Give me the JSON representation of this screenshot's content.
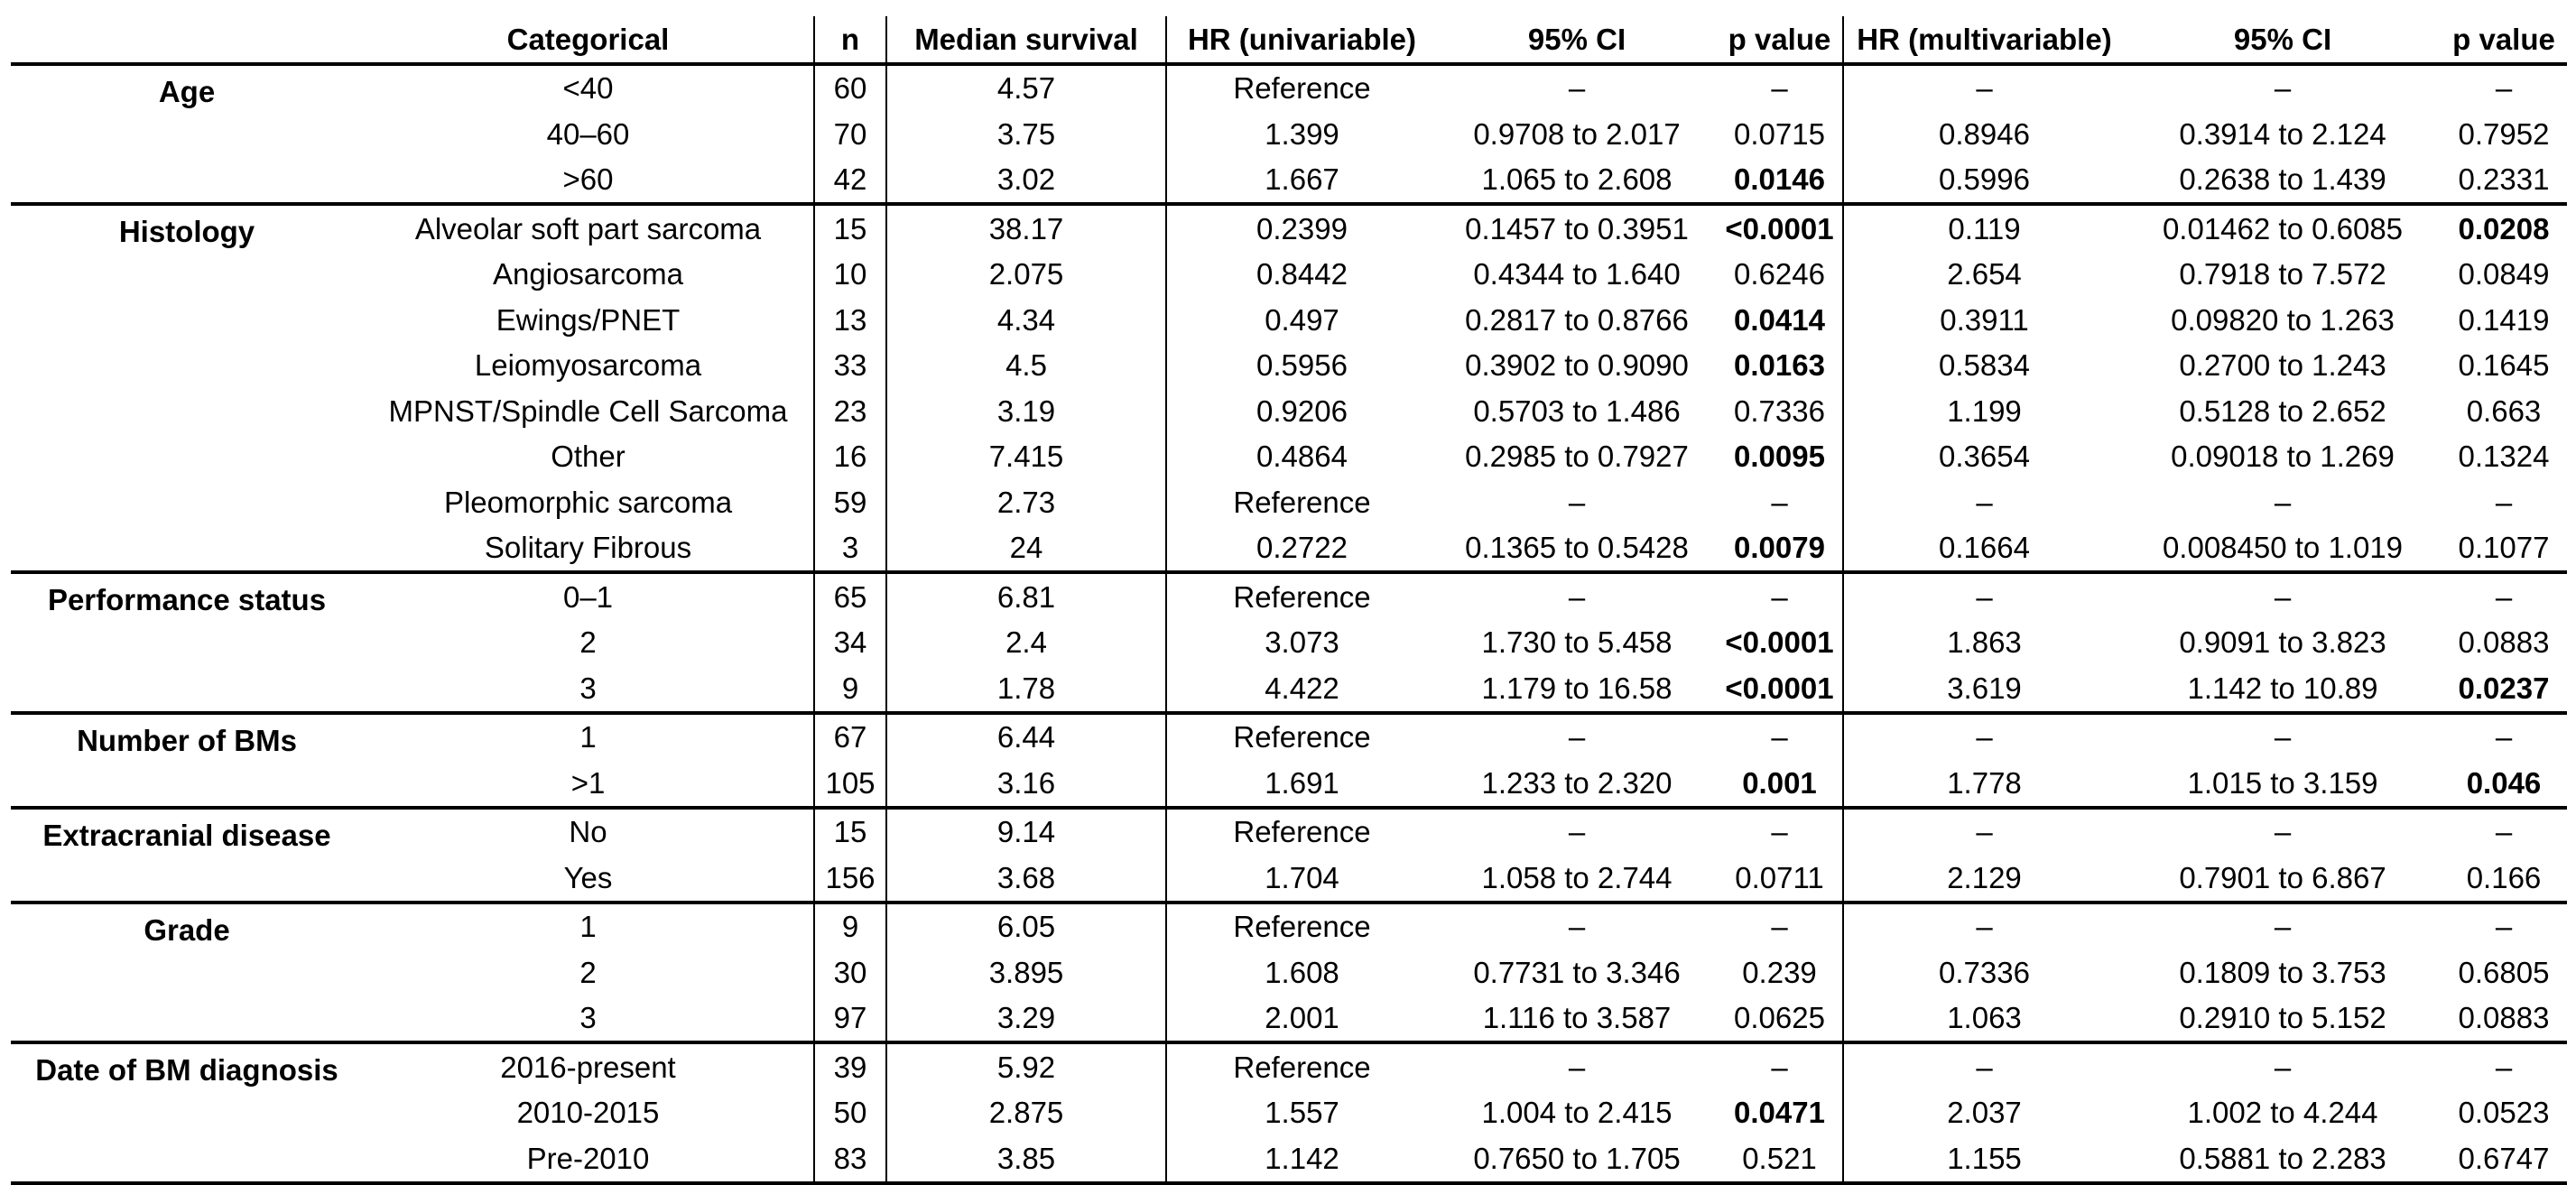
{
  "headers": [
    "",
    "Categorical",
    "n",
    "Median survival",
    "HR (univariable)",
    "95% CI",
    "p value",
    "HR (multivariable)",
    "95% CI",
    "p value"
  ],
  "groups": [
    {
      "label": "Age",
      "rows": [
        {
          "cat": "<40",
          "n": "60",
          "median": "4.57",
          "hr_uni": "Reference",
          "ci_uni": "–",
          "p_uni": "–",
          "p_uni_sig": false,
          "hr_multi": "–",
          "ci_multi": "–",
          "p_multi": "–",
          "p_multi_sig": false
        },
        {
          "cat": "40–60",
          "n": "70",
          "median": "3.75",
          "hr_uni": "1.399",
          "ci_uni": "0.9708 to 2.017",
          "p_uni": "0.0715",
          "p_uni_sig": false,
          "hr_multi": "0.8946",
          "ci_multi": "0.3914 to 2.124",
          "p_multi": "0.7952",
          "p_multi_sig": false
        },
        {
          "cat": ">60",
          "n": "42",
          "median": "3.02",
          "hr_uni": "1.667",
          "ci_uni": "1.065 to 2.608",
          "p_uni": "0.0146",
          "p_uni_sig": true,
          "hr_multi": "0.5996",
          "ci_multi": "0.2638 to 1.439",
          "p_multi": "0.2331",
          "p_multi_sig": false
        }
      ]
    },
    {
      "label": "Histology",
      "rows": [
        {
          "cat": "Alveolar soft part sarcoma",
          "n": "15",
          "median": "38.17",
          "hr_uni": "0.2399",
          "ci_uni": "0.1457 to 0.3951",
          "p_uni": "<0.0001",
          "p_uni_sig": true,
          "hr_multi": "0.119",
          "ci_multi": "0.01462 to 0.6085",
          "p_multi": "0.0208",
          "p_multi_sig": true
        },
        {
          "cat": "Angiosarcoma",
          "n": "10",
          "median": "2.075",
          "hr_uni": "0.8442",
          "ci_uni": "0.4344 to 1.640",
          "p_uni": "0.6246",
          "p_uni_sig": false,
          "hr_multi": "2.654",
          "ci_multi": "0.7918 to 7.572",
          "p_multi": "0.0849",
          "p_multi_sig": false
        },
        {
          "cat": "Ewings/PNET",
          "n": "13",
          "median": "4.34",
          "hr_uni": "0.497",
          "ci_uni": "0.2817 to 0.8766",
          "p_uni": "0.0414",
          "p_uni_sig": true,
          "hr_multi": "0.3911",
          "ci_multi": "0.09820 to 1.263",
          "p_multi": "0.1419",
          "p_multi_sig": false
        },
        {
          "cat": "Leiomyosarcoma",
          "n": "33",
          "median": "4.5",
          "hr_uni": "0.5956",
          "ci_uni": "0.3902 to 0.9090",
          "p_uni": "0.0163",
          "p_uni_sig": true,
          "hr_multi": "0.5834",
          "ci_multi": "0.2700 to 1.243",
          "p_multi": "0.1645",
          "p_multi_sig": false
        },
        {
          "cat": "MPNST/Spindle Cell Sarcoma",
          "n": "23",
          "median": "3.19",
          "hr_uni": "0.9206",
          "ci_uni": "0.5703 to 1.486",
          "p_uni": "0.7336",
          "p_uni_sig": false,
          "hr_multi": "1.199",
          "ci_multi": "0.5128 to 2.652",
          "p_multi": "0.663",
          "p_multi_sig": false
        },
        {
          "cat": "Other",
          "n": "16",
          "median": "7.415",
          "hr_uni": "0.4864",
          "ci_uni": "0.2985 to 0.7927",
          "p_uni": "0.0095",
          "p_uni_sig": true,
          "hr_multi": "0.3654",
          "ci_multi": "0.09018 to 1.269",
          "p_multi": "0.1324",
          "p_multi_sig": false
        },
        {
          "cat": "Pleomorphic sarcoma",
          "n": "59",
          "median": "2.73",
          "hr_uni": "Reference",
          "ci_uni": "–",
          "p_uni": "–",
          "p_uni_sig": false,
          "hr_multi": "–",
          "ci_multi": "–",
          "p_multi": "–",
          "p_multi_sig": false
        },
        {
          "cat": "Solitary Fibrous",
          "n": "3",
          "median": "24",
          "hr_uni": "0.2722",
          "ci_uni": "0.1365 to 0.5428",
          "p_uni": "0.0079",
          "p_uni_sig": true,
          "hr_multi": "0.1664",
          "ci_multi": "0.008450 to 1.019",
          "p_multi": "0.1077",
          "p_multi_sig": false
        }
      ]
    },
    {
      "label": "Performance status",
      "rows": [
        {
          "cat": "0–1",
          "n": "65",
          "median": "6.81",
          "hr_uni": "Reference",
          "ci_uni": "–",
          "p_uni": "–",
          "p_uni_sig": false,
          "hr_multi": "–",
          "ci_multi": "–",
          "p_multi": "–",
          "p_multi_sig": false
        },
        {
          "cat": "2",
          "n": "34",
          "median": "2.4",
          "hr_uni": "3.073",
          "ci_uni": "1.730 to 5.458",
          "p_uni": "<0.0001",
          "p_uni_sig": true,
          "hr_multi": "1.863",
          "ci_multi": "0.9091 to 3.823",
          "p_multi": "0.0883",
          "p_multi_sig": false
        },
        {
          "cat": "3",
          "n": "9",
          "median": "1.78",
          "hr_uni": "4.422",
          "ci_uni": "1.179 to 16.58",
          "p_uni": "<0.0001",
          "p_uni_sig": true,
          "hr_multi": "3.619",
          "ci_multi": "1.142 to 10.89",
          "p_multi": "0.0237",
          "p_multi_sig": true
        }
      ]
    },
    {
      "label": "Number of BMs",
      "rows": [
        {
          "cat": "1",
          "n": "67",
          "median": "6.44",
          "hr_uni": "Reference",
          "ci_uni": "–",
          "p_uni": "–",
          "p_uni_sig": false,
          "hr_multi": "–",
          "ci_multi": "–",
          "p_multi": "–",
          "p_multi_sig": false
        },
        {
          "cat": ">1",
          "n": "105",
          "median": "3.16",
          "hr_uni": "1.691",
          "ci_uni": "1.233 to 2.320",
          "p_uni": "0.001",
          "p_uni_sig": true,
          "hr_multi": "1.778",
          "ci_multi": "1.015 to 3.159",
          "p_multi": "0.046",
          "p_multi_sig": true
        }
      ]
    },
    {
      "label": "Extracranial disease",
      "rows": [
        {
          "cat": "No",
          "n": "15",
          "median": "9.14",
          "hr_uni": "Reference",
          "ci_uni": "–",
          "p_uni": "–",
          "p_uni_sig": false,
          "hr_multi": "–",
          "ci_multi": "–",
          "p_multi": "–",
          "p_multi_sig": false
        },
        {
          "cat": "Yes",
          "n": "156",
          "median": "3.68",
          "hr_uni": "1.704",
          "ci_uni": "1.058 to 2.744",
          "p_uni": "0.0711",
          "p_uni_sig": false,
          "hr_multi": "2.129",
          "ci_multi": "0.7901 to 6.867",
          "p_multi": "0.166",
          "p_multi_sig": false
        }
      ]
    },
    {
      "label": "Grade",
      "rows": [
        {
          "cat": "1",
          "n": "9",
          "median": "6.05",
          "hr_uni": "Reference",
          "ci_uni": "–",
          "p_uni": "–",
          "p_uni_sig": false,
          "hr_multi": "–",
          "ci_multi": "–",
          "p_multi": "–",
          "p_multi_sig": false
        },
        {
          "cat": "2",
          "n": "30",
          "median": "3.895",
          "hr_uni": "1.608",
          "ci_uni": "0.7731 to 3.346",
          "p_uni": "0.239",
          "p_uni_sig": false,
          "hr_multi": "0.7336",
          "ci_multi": "0.1809 to 3.753",
          "p_multi": "0.6805",
          "p_multi_sig": false
        },
        {
          "cat": "3",
          "n": "97",
          "median": "3.29",
          "hr_uni": "2.001",
          "ci_uni": "1.116 to 3.587",
          "p_uni": "0.0625",
          "p_uni_sig": false,
          "hr_multi": "1.063",
          "ci_multi": "0.2910 to 5.152",
          "p_multi": "0.0883",
          "p_multi_sig": false
        }
      ]
    },
    {
      "label": "Date of BM diagnosis",
      "rows": [
        {
          "cat": "2016-present",
          "n": "39",
          "median": "5.92",
          "hr_uni": "Reference",
          "ci_uni": "–",
          "p_uni": "–",
          "p_uni_sig": false,
          "hr_multi": "–",
          "ci_multi": "–",
          "p_multi": "–",
          "p_multi_sig": false
        },
        {
          "cat": "2010-2015",
          "n": "50",
          "median": "2.875",
          "hr_uni": "1.557",
          "ci_uni": "1.004 to 2.415",
          "p_uni": "0.0471",
          "p_uni_sig": true,
          "hr_multi": "2.037",
          "ci_multi": "1.002 to 4.244",
          "p_multi": "0.0523",
          "p_multi_sig": false
        },
        {
          "cat": "Pre-2010",
          "n": "83",
          "median": "3.85",
          "hr_uni": "1.142",
          "ci_uni": "0.7650 to 1.705",
          "p_uni": "0.521",
          "p_uni_sig": false,
          "hr_multi": "1.155",
          "ci_multi": "0.5881 to 2.283",
          "p_multi": "0.6747",
          "p_multi_sig": false
        }
      ]
    }
  ]
}
